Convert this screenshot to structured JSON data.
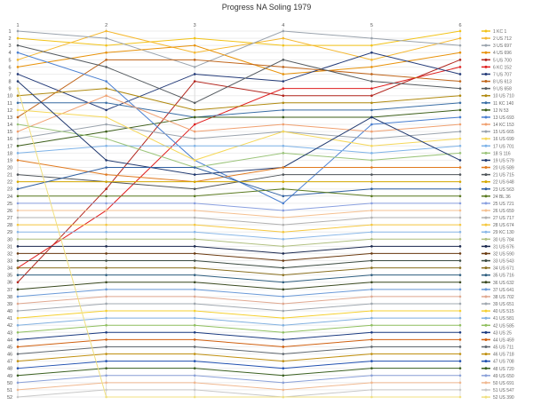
{
  "chart_data": {
    "type": "line",
    "title": "Progress NA Soling 1979",
    "x": [
      "1",
      "2",
      "3",
      "4",
      "5",
      "6"
    ],
    "ylim": [
      1,
      52
    ],
    "y_reversed": true,
    "grid": true,
    "legend": "right",
    "yticks": [
      1,
      2,
      3,
      4,
      5,
      6,
      7,
      8,
      9,
      10,
      11,
      12,
      13,
      14,
      15,
      16,
      17,
      18,
      19,
      20,
      21,
      22,
      23,
      24,
      25,
      26,
      27,
      28,
      29,
      30,
      31,
      32,
      33,
      34,
      35,
      36,
      37,
      38,
      39,
      40,
      41,
      42,
      43,
      44,
      45,
      46,
      47,
      48,
      49,
      50,
      51,
      52
    ],
    "series": [
      {
        "name": "1 KC 1",
        "color": "#f2c318",
        "values": [
          2,
          3,
          2,
          3,
          3,
          1
        ]
      },
      {
        "name": "2 US 712",
        "color": "#f5b830",
        "values": [
          5,
          1,
          4,
          2,
          5,
          2
        ]
      },
      {
        "name": "3 US 697",
        "color": "#9aa3ad",
        "values": [
          1,
          2,
          6,
          1,
          2,
          3
        ]
      },
      {
        "name": "4 US 696",
        "color": "#e8920a",
        "values": [
          6,
          4,
          3,
          7,
          6,
          4
        ]
      },
      {
        "name": "5 US 700",
        "color": "#b3261e",
        "values": [
          36,
          23,
          8,
          10,
          10,
          5
        ]
      },
      {
        "name": "6 KC 152",
        "color": "#e02020",
        "values": [
          34,
          26,
          14,
          9,
          9,
          6
        ]
      },
      {
        "name": "7 US 707",
        "color": "#233a78",
        "values": [
          7,
          12,
          7,
          8,
          4,
          7
        ]
      },
      {
        "name": "8 US 613",
        "color": "#c0651a",
        "values": [
          13,
          5,
          5,
          6,
          7,
          8
        ]
      },
      {
        "name": "9 US 658",
        "color": "#555b60",
        "values": [
          3,
          6,
          11,
          5,
          8,
          9
        ]
      },
      {
        "name": "10 US 710",
        "color": "#b08a10",
        "values": [
          10,
          9,
          12,
          11,
          11,
          10
        ]
      },
      {
        "name": "11 KC 140",
        "color": "#3a6ea5",
        "values": [
          11,
          11,
          13,
          12,
          12,
          11
        ]
      },
      {
        "name": "12 N 53",
        "color": "#3d5f1a",
        "values": [
          17,
          15,
          13,
          13,
          13,
          12
        ]
      },
      {
        "name": "13 US 693",
        "color": "#4a7fd0",
        "values": [
          4,
          8,
          19,
          25,
          14,
          13
        ]
      },
      {
        "name": "14 KC 153",
        "color": "#f0a070",
        "values": [
          15,
          10,
          15,
          14,
          15,
          14
        ]
      },
      {
        "name": "15 US 665",
        "color": "#9aa3ad",
        "values": [
          16,
          14,
          16,
          15,
          16,
          15
        ]
      },
      {
        "name": "16 US 699",
        "color": "#f5d85a",
        "values": [
          12,
          13,
          19,
          15,
          17,
          16
        ]
      },
      {
        "name": "17 US 701",
        "color": "#7eb3e8",
        "values": [
          18,
          17,
          17,
          17,
          18,
          17
        ]
      },
      {
        "name": "18 S 116",
        "color": "#9bc47a",
        "values": [
          14,
          16,
          20,
          18,
          19,
          18
        ]
      },
      {
        "name": "19 US 579",
        "color": "#223a70",
        "values": [
          8,
          19,
          21,
          20,
          13,
          19
        ]
      },
      {
        "name": "20 US 589",
        "color": "#e07a20",
        "values": [
          19,
          21,
          22,
          20,
          20,
          20
        ]
      },
      {
        "name": "21 US 715",
        "color": "#4f555a",
        "values": [
          21,
          22,
          23,
          21,
          21,
          21
        ]
      },
      {
        "name": "22 US 648",
        "color": "#d4a800",
        "values": [
          22,
          22,
          22,
          22,
          22,
          22
        ]
      },
      {
        "name": "23 US 563",
        "color": "#2f5fa0",
        "values": [
          23,
          20,
          20,
          24,
          23,
          23
        ]
      },
      {
        "name": "24 BL 36",
        "color": "#5a7a20",
        "values": [
          24,
          24,
          24,
          23,
          24,
          24
        ]
      },
      {
        "name": "25 US 721",
        "color": "#8aa0e0",
        "values": [
          25,
          25,
          25,
          26,
          25,
          25
        ]
      },
      {
        "name": "26 US 659",
        "color": "#f5c090",
        "values": [
          26,
          26,
          26,
          27,
          26,
          26
        ]
      },
      {
        "name": "27 US 717",
        "color": "#b0b0b0",
        "values": [
          27,
          27,
          27,
          28,
          27,
          27
        ]
      },
      {
        "name": "28 US 674",
        "color": "#f5c840",
        "values": [
          28,
          28,
          28,
          29,
          28,
          28
        ]
      },
      {
        "name": "29 KC 130",
        "color": "#8ab8e8",
        "values": [
          29,
          29,
          29,
          30,
          29,
          29
        ]
      },
      {
        "name": "30 US 784",
        "color": "#b0c080",
        "values": [
          30,
          30,
          30,
          31,
          30,
          30
        ]
      },
      {
        "name": "31 US 676",
        "color": "#1c2a50",
        "values": [
          31,
          31,
          31,
          32,
          31,
          31
        ]
      },
      {
        "name": "32 US 590",
        "color": "#6a3a10",
        "values": [
          32,
          32,
          32,
          33,
          32,
          32
        ]
      },
      {
        "name": "33 US 543",
        "color": "#3a4a40",
        "values": [
          33,
          33,
          33,
          34,
          33,
          33
        ]
      },
      {
        "name": "34 US 671",
        "color": "#8a7020",
        "values": [
          34,
          34,
          34,
          35,
          34,
          34
        ]
      },
      {
        "name": "35 US 716",
        "color": "#2f5f80",
        "values": [
          35,
          35,
          35,
          36,
          35,
          35
        ]
      },
      {
        "name": "36 US 632",
        "color": "#3a4a20",
        "values": [
          37,
          36,
          36,
          37,
          36,
          36
        ]
      },
      {
        "name": "37 US 641",
        "color": "#6a9ad8",
        "values": [
          38,
          37,
          37,
          38,
          37,
          37
        ]
      },
      {
        "name": "38 US 702",
        "color": "#e0a890",
        "values": [
          39,
          38,
          38,
          39,
          38,
          38
        ]
      },
      {
        "name": "39 US 651",
        "color": "#a0a8b0",
        "values": [
          40,
          39,
          39,
          40,
          39,
          39
        ]
      },
      {
        "name": "40 US 515",
        "color": "#f5d030",
        "values": [
          41,
          40,
          40,
          41,
          40,
          40
        ]
      },
      {
        "name": "41 US 581",
        "color": "#80b0e0",
        "values": [
          42,
          41,
          41,
          42,
          41,
          41
        ]
      },
      {
        "name": "42 US 585",
        "color": "#90c060",
        "values": [
          43,
          42,
          42,
          43,
          42,
          42
        ]
      },
      {
        "name": "43 US 25",
        "color": "#1a3a80",
        "values": [
          44,
          43,
          43,
          44,
          43,
          43
        ]
      },
      {
        "name": "44 US 459",
        "color": "#d06010",
        "values": [
          45,
          44,
          44,
          45,
          44,
          44
        ]
      },
      {
        "name": "45 US 711",
        "color": "#606870",
        "values": [
          46,
          45,
          45,
          46,
          45,
          45
        ]
      },
      {
        "name": "46 US 718",
        "color": "#c09010",
        "values": [
          47,
          46,
          46,
          47,
          46,
          46
        ]
      },
      {
        "name": "47 US 708",
        "color": "#2050b0",
        "values": [
          48,
          47,
          47,
          48,
          47,
          47
        ]
      },
      {
        "name": "48 US 720",
        "color": "#3a6020",
        "values": [
          49,
          48,
          48,
          49,
          48,
          48
        ]
      },
      {
        "name": "49 US 650",
        "color": "#8aa0d8",
        "values": [
          50,
          49,
          49,
          50,
          49,
          49
        ]
      },
      {
        "name": "50 US 691",
        "color": "#f0b890",
        "values": [
          51,
          50,
          50,
          51,
          50,
          50
        ]
      },
      {
        "name": "51 US 547",
        "color": "#c8c8c8",
        "values": [
          52,
          51,
          51,
          52,
          51,
          51
        ]
      },
      {
        "name": "52 US 390",
        "color": "#f0e080",
        "values": [
          9,
          52,
          52,
          52,
          52,
          52
        ]
      }
    ]
  }
}
